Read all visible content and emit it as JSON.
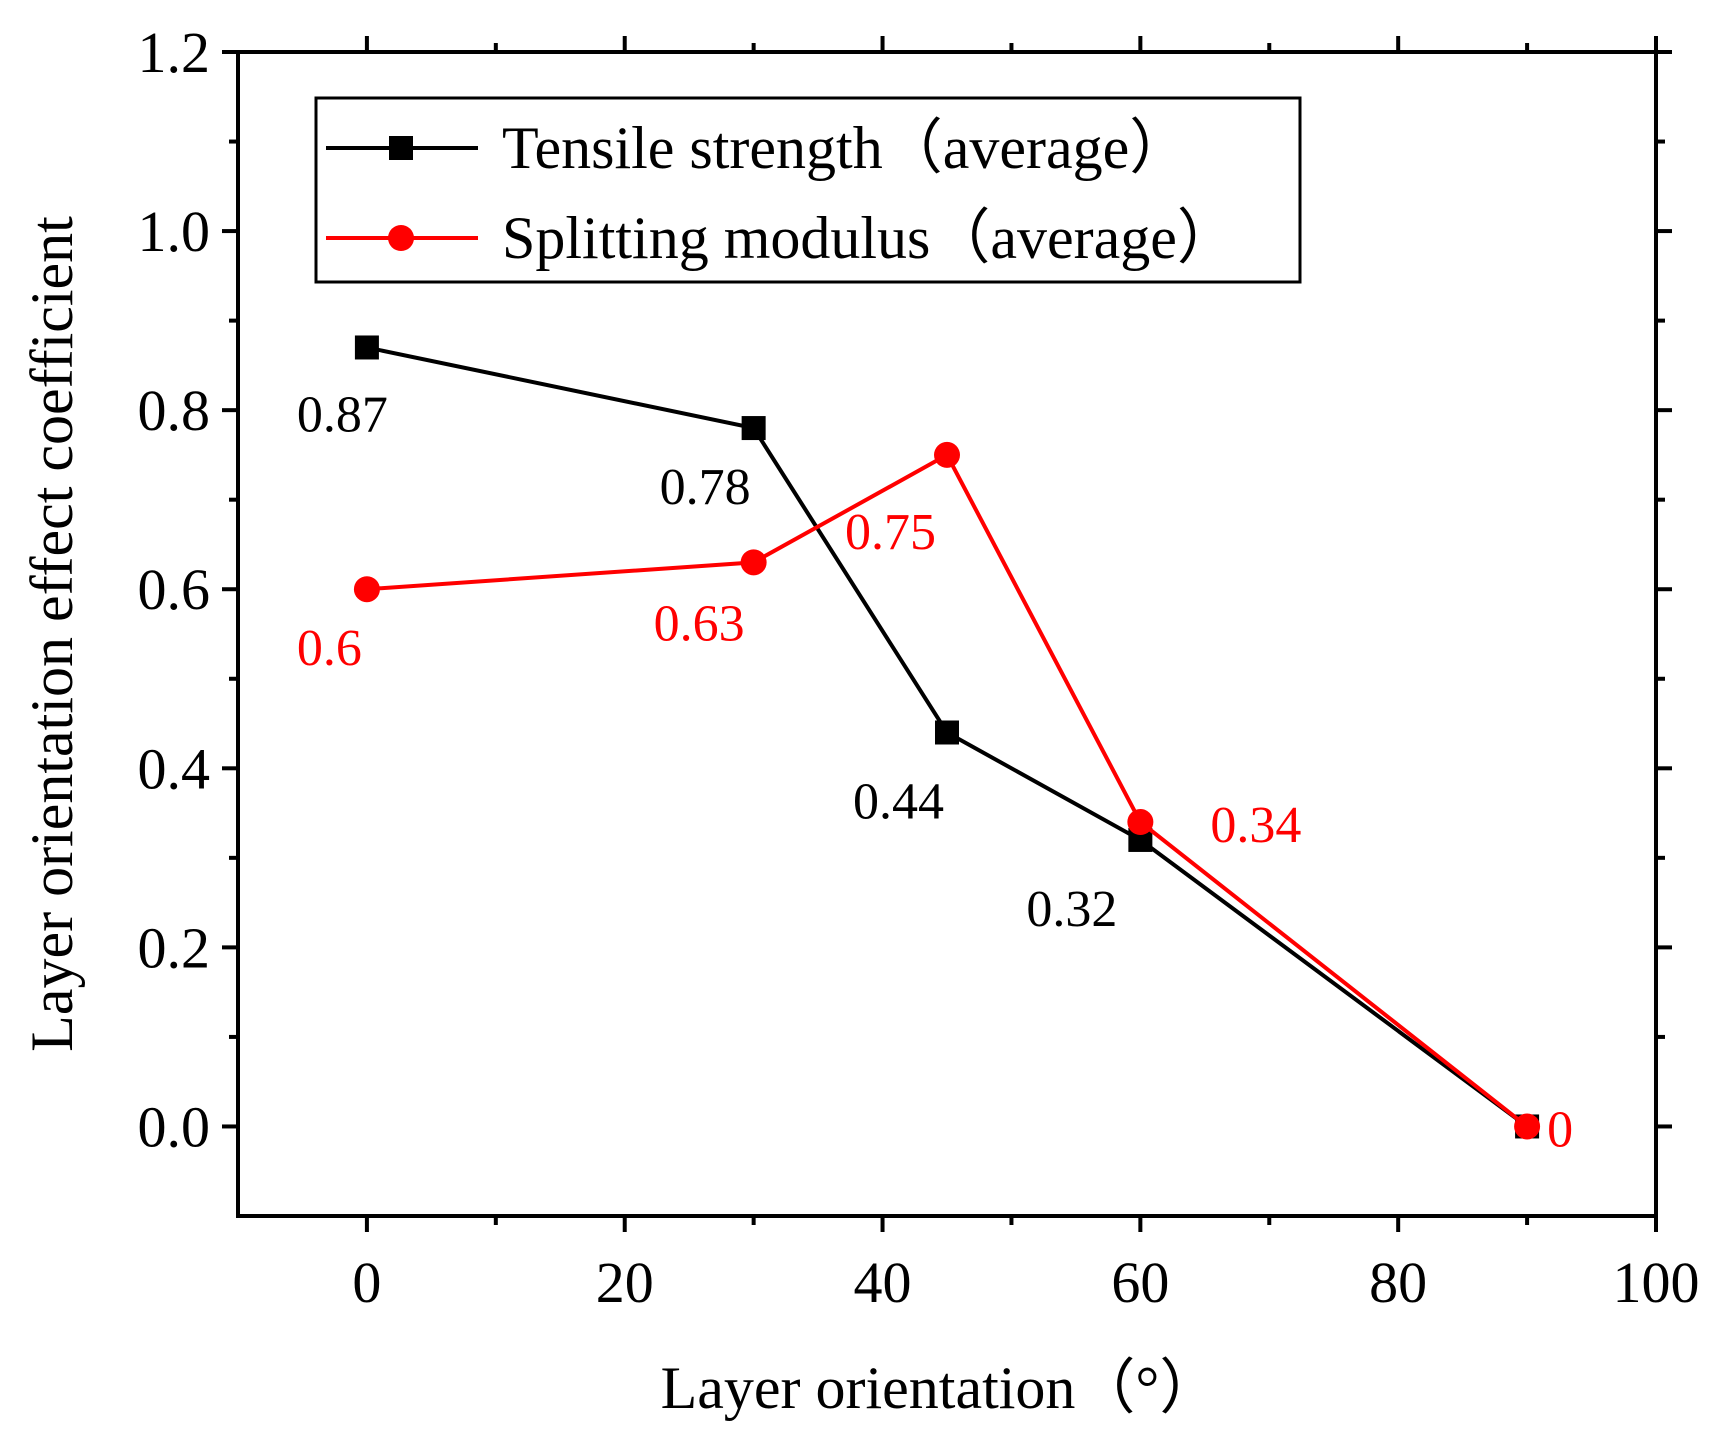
{
  "chart_data": {
    "type": "line",
    "title": "",
    "xlabel": "Layer orientation（°）",
    "ylabel": "Layer orientation effect coefficient",
    "xlim": [
      -10,
      100
    ],
    "ylim": [
      -0.1,
      1.2
    ],
    "x_ticks": [
      0,
      20,
      40,
      60,
      80,
      100
    ],
    "y_ticks": [
      0.0,
      0.2,
      0.4,
      0.6,
      0.8,
      1.0,
      1.2
    ],
    "x_tick_labels": [
      "0",
      "20",
      "40",
      "60",
      "80",
      "100"
    ],
    "y_tick_labels": [
      "0.0",
      "0.2",
      "0.4",
      "0.6",
      "0.8",
      "1.0",
      "1.2"
    ],
    "grid": false,
    "legend_position": "top-left",
    "x": [
      0,
      30,
      45,
      60,
      90
    ],
    "series": [
      {
        "name": "Tensile strength（average）",
        "color": "#000000",
        "marker": "square",
        "values": [
          0.87,
          0.78,
          0.44,
          0.32,
          0
        ],
        "labels": [
          "0.87",
          "0.78",
          "0.44",
          "0.32",
          ""
        ]
      },
      {
        "name": "Splitting modulus（average）",
        "color": "#ff0000",
        "marker": "circle",
        "values": [
          0.6,
          0.63,
          0.75,
          0.34,
          0
        ],
        "labels": [
          "0.6",
          "0.63",
          "0.75",
          "0.34",
          "0"
        ]
      }
    ]
  }
}
